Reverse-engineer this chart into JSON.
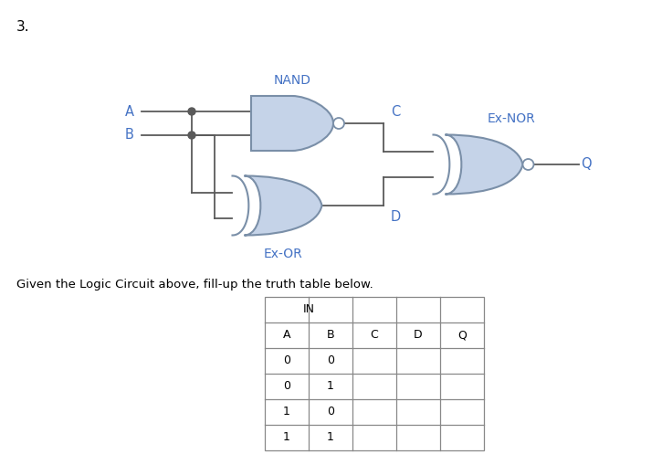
{
  "title_number": "3.",
  "gate_fill": "#c5d3e8",
  "gate_edge": "#7a8fa8",
  "wire_color": "#5a5a5a",
  "blue_text": "#4472C4",
  "black_text": "#1a1a1a",
  "nand_label": "NAND",
  "exor_label": "Ex-OR",
  "exnor_label": "Ex-NOR",
  "signal_A": "A",
  "signal_B": "B",
  "signal_C": "C",
  "signal_D": "D",
  "signal_Q": "Q",
  "caption": "Given the Logic Circuit above, fill-up the truth table below.",
  "col_labels": [
    "A",
    "B",
    "C",
    "D",
    "Q"
  ],
  "row_data": [
    [
      "0",
      "0",
      "",
      "",
      ""
    ],
    [
      "0",
      "1",
      "",
      "",
      ""
    ],
    [
      "1",
      "0",
      "",
      "",
      ""
    ],
    [
      "1",
      "1",
      "",
      "",
      ""
    ]
  ],
  "background": "#ffffff"
}
